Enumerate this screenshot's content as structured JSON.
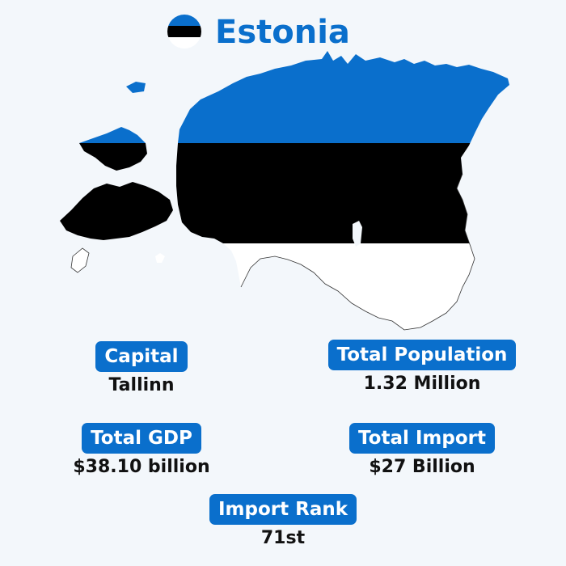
{
  "header": {
    "title": "Estonia",
    "flag_icon": "estonia-flag-icon"
  },
  "colors": {
    "accent": "#0a6fcc",
    "flag_blue": "#0a6fcc",
    "flag_black": "#000000",
    "flag_white": "#ffffff",
    "background": "#f3f7fb"
  },
  "stats": {
    "capital": {
      "label": "Capital",
      "value": "Tallinn"
    },
    "population": {
      "label": "Total Population",
      "value": "1.32 Million"
    },
    "gdp": {
      "label": "Total GDP",
      "value": "$38.10 billion"
    },
    "import": {
      "label": "Total Import",
      "value": "$27 Billion"
    },
    "import_rank": {
      "label": "Import Rank",
      "value": "71st"
    }
  }
}
